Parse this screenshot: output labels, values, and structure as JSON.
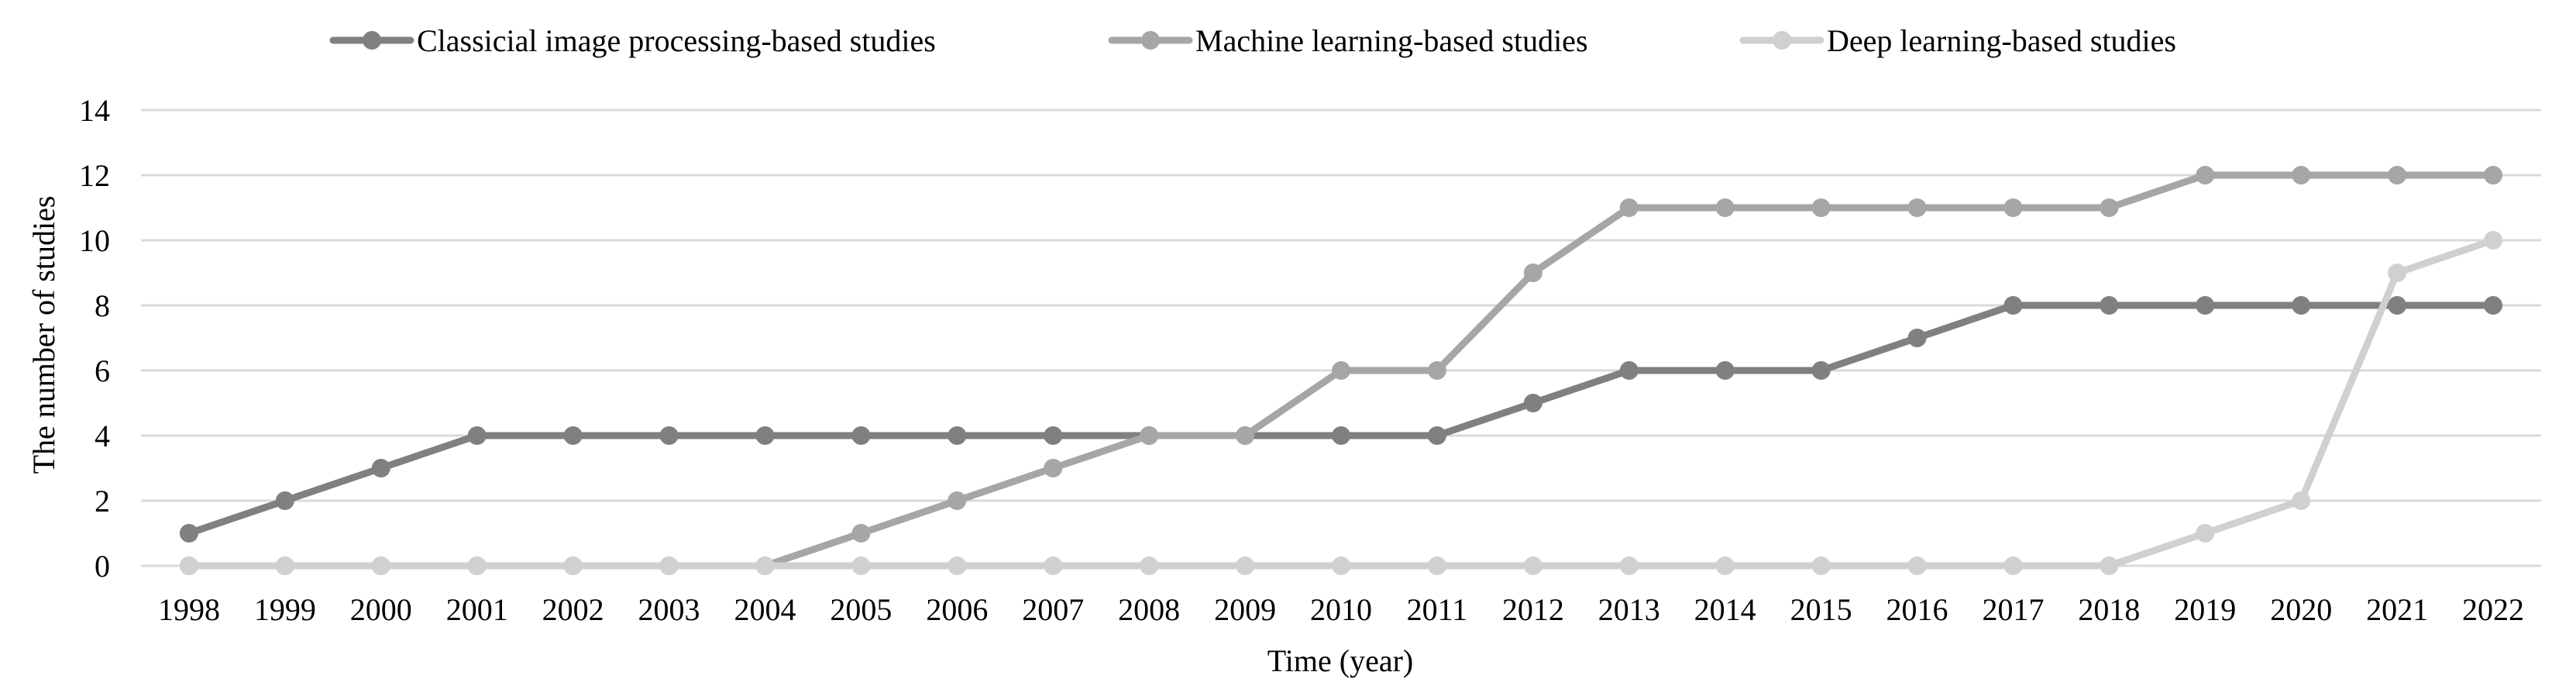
{
  "chart_data": {
    "type": "line",
    "title": "",
    "xlabel": "Time (year)",
    "ylabel": "The number of studies",
    "ylim": [
      0,
      14
    ],
    "yticks": [
      "0",
      "2",
      "4",
      "6",
      "8",
      "10",
      "12",
      "14"
    ],
    "grid": true,
    "legend_position": "top",
    "categories": [
      "1998",
      "1999",
      "2000",
      "2001",
      "2002",
      "2003",
      "2004",
      "2005",
      "2006",
      "2007",
      "2008",
      "2009",
      "2010",
      "2011",
      "2012",
      "2013",
      "2014",
      "2015",
      "2016",
      "2017",
      "2018",
      "2019",
      "2020",
      "2021",
      "2022"
    ],
    "series": [
      {
        "name": "Classicial image processing-based studies",
        "color": "#808080",
        "values": [
          1,
          2,
          3,
          4,
          4,
          4,
          4,
          4,
          4,
          4,
          4,
          4,
          4,
          4,
          5,
          6,
          6,
          6,
          7,
          8,
          8,
          8,
          8,
          8,
          8
        ]
      },
      {
        "name": "Machine learning-based studies",
        "color": "#a6a6a6",
        "values": [
          0,
          0,
          0,
          0,
          0,
          0,
          0,
          1,
          2,
          3,
          4,
          4,
          6,
          6,
          9,
          11,
          11,
          11,
          11,
          11,
          11,
          12,
          12,
          12,
          12
        ]
      },
      {
        "name": "Deep learning-based studies",
        "color": "#d0d0d0",
        "values": [
          0,
          0,
          0,
          0,
          0,
          0,
          0,
          0,
          0,
          0,
          0,
          0,
          0,
          0,
          0,
          0,
          0,
          0,
          0,
          0,
          0,
          1,
          2,
          9,
          10
        ]
      }
    ]
  }
}
